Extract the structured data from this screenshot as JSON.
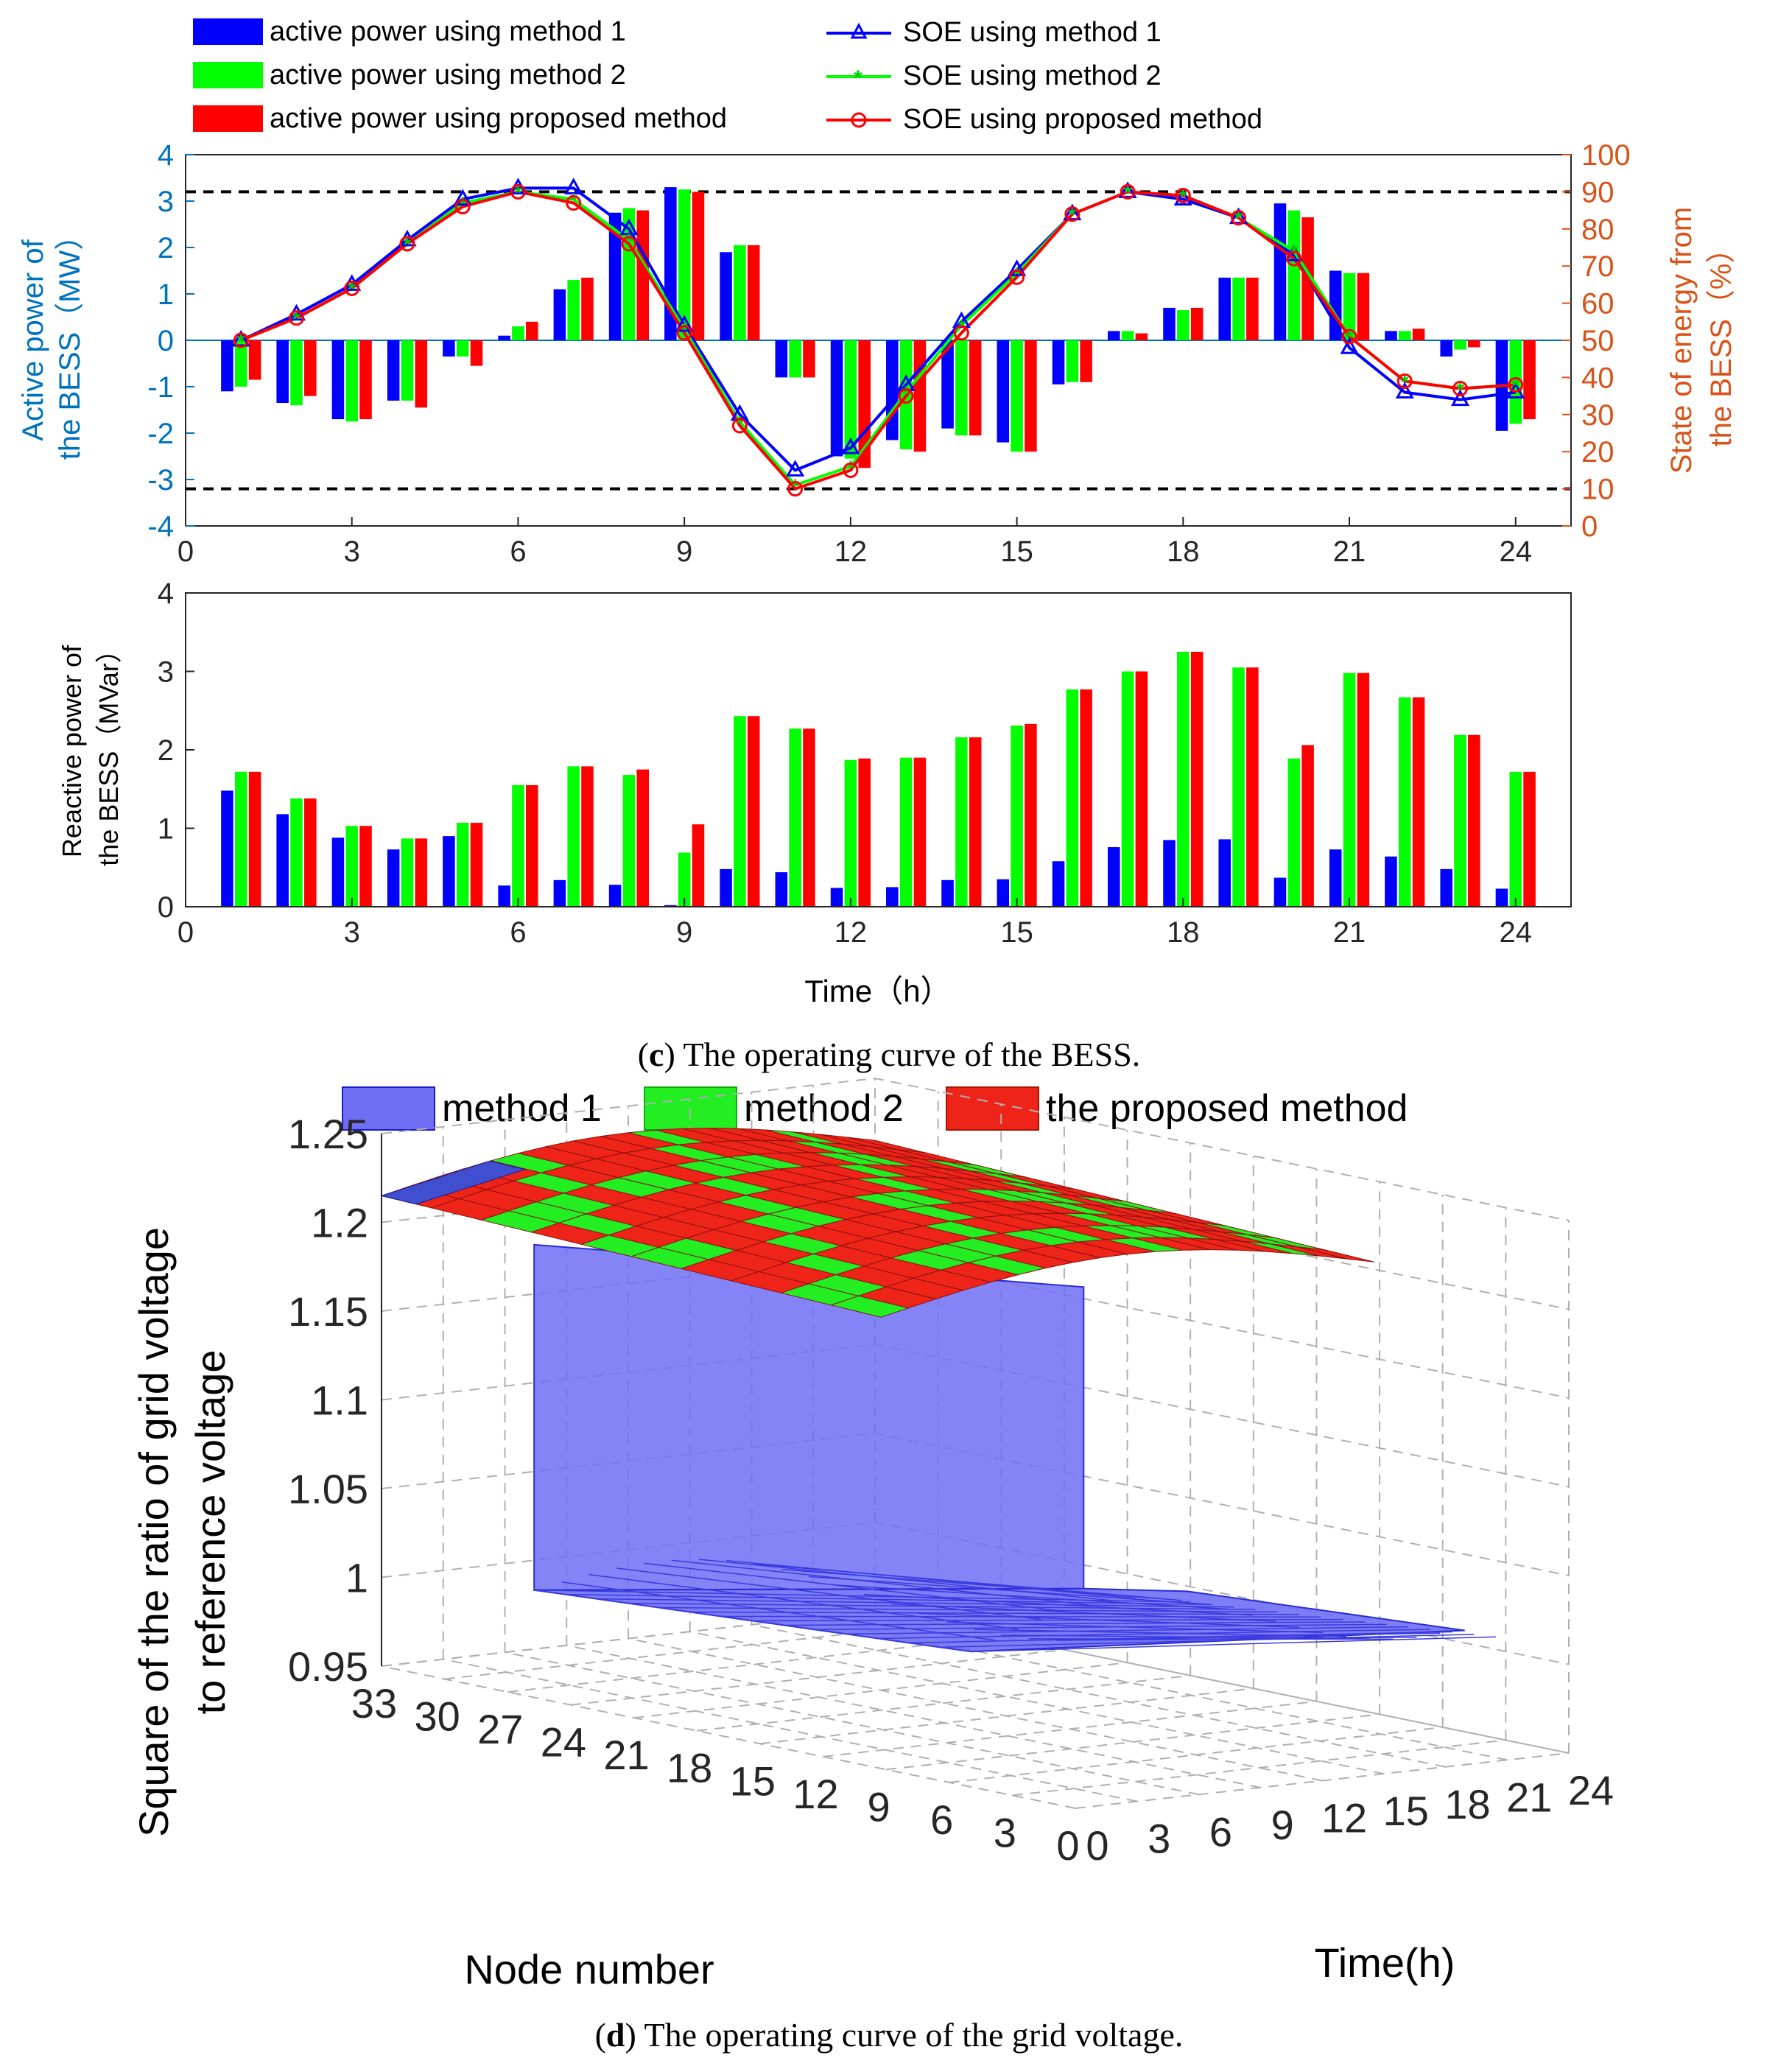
{
  "colors": {
    "method1": "#0000ff",
    "method2": "#00ff00",
    "proposed": "#ff0000",
    "left_axis": "#0072bd",
    "right_axis": "#d95319",
    "surf1": "#6f6ff4",
    "surf2": "#22ee22",
    "surf3": "#ee2418"
  },
  "chart_data": [
    {
      "type": "bar",
      "id": "active-power",
      "legend": [
        "active power using method 1",
        "active power using method 2",
        "active power using proposed method",
        "SOE using method 1",
        "SOE using method 2",
        "SOE using proposed method"
      ],
      "ylabel_line1": "Active power of",
      "ylabel_line2": "the BESS（MW）",
      "y2label_line1": "State of energy from",
      "y2label_line2": "the BESS（%）",
      "xlim": [
        0,
        25
      ],
      "ylim": [
        -4,
        4
      ],
      "y2lim": [
        0,
        100
      ],
      "x_ticks": [
        0,
        3,
        6,
        9,
        12,
        15,
        18,
        21,
        24
      ],
      "y_ticks": [
        -4,
        -3,
        -2,
        -1,
        0,
        1,
        2,
        3,
        4
      ],
      "y2_ticks": [
        0,
        10,
        20,
        30,
        40,
        50,
        60,
        70,
        80,
        90,
        100
      ],
      "limits": [
        3.2,
        -3.2
      ],
      "x": [
        1,
        2,
        3,
        4,
        5,
        6,
        7,
        8,
        9,
        10,
        11,
        12,
        13,
        14,
        15,
        16,
        17,
        18,
        19,
        20,
        21,
        22,
        23,
        24
      ],
      "series": [
        {
          "name": "active power using method 1",
          "values": [
            -1.1,
            -1.35,
            -1.7,
            -1.3,
            -0.35,
            0.1,
            1.1,
            2.75,
            3.3,
            1.9,
            -0.8,
            -2.5,
            -2.15,
            -1.9,
            -2.2,
            -0.95,
            0.2,
            0.7,
            1.35,
            2.95,
            1.5,
            0.2,
            -0.35,
            -1.95
          ]
        },
        {
          "name": "active power using method 2",
          "values": [
            -1.0,
            -1.4,
            -1.75,
            -1.3,
            -0.35,
            0.3,
            1.3,
            2.85,
            3.25,
            2.05,
            -0.8,
            -2.55,
            -2.35,
            -2.05,
            -2.4,
            -0.9,
            0.2,
            0.65,
            1.35,
            2.8,
            1.45,
            0.2,
            -0.2,
            -1.8
          ]
        },
        {
          "name": "active power using proposed method",
          "values": [
            -0.85,
            -1.2,
            -1.7,
            -1.45,
            -0.55,
            0.4,
            1.35,
            2.8,
            3.2,
            2.05,
            -0.8,
            -2.75,
            -2.4,
            -2.05,
            -2.4,
            -0.9,
            0.15,
            0.7,
            1.35,
            2.65,
            1.45,
            0.25,
            -0.15,
            -1.7
          ]
        },
        {
          "name": "SOE using method 1",
          "values": [
            50,
            57,
            65,
            77,
            88,
            91,
            91,
            80,
            54,
            30,
            15,
            21,
            38,
            55,
            69,
            84,
            90,
            88,
            83,
            73,
            48,
            36,
            34,
            36
          ]
        },
        {
          "name": "SOE using method 2",
          "values": [
            50,
            56,
            64,
            76,
            87,
            90,
            88,
            77,
            53,
            28,
            11,
            16,
            36,
            54,
            68,
            84,
            90,
            89,
            83,
            74,
            51,
            39,
            37,
            38
          ]
        },
        {
          "name": "SOE using proposed method",
          "values": [
            50,
            56,
            64,
            76,
            86,
            90,
            87,
            76,
            52,
            27,
            10,
            15,
            35,
            52,
            67,
            84,
            90,
            89,
            83,
            72,
            51,
            39,
            37,
            38
          ]
        }
      ]
    },
    {
      "type": "bar",
      "id": "reactive-power",
      "ylabel_line1": "Reactive power of",
      "ylabel_line2": "the BESS（MVar）",
      "xlabel": "Time（h）",
      "xlim": [
        0,
        25
      ],
      "ylim": [
        0,
        4
      ],
      "x_ticks": [
        0,
        3,
        6,
        9,
        12,
        15,
        18,
        21,
        24
      ],
      "y_ticks": [
        0,
        1,
        2,
        3,
        4
      ],
      "x": [
        1,
        2,
        3,
        4,
        5,
        6,
        7,
        8,
        9,
        10,
        11,
        12,
        13,
        14,
        15,
        16,
        17,
        18,
        19,
        20,
        21,
        22,
        23,
        24
      ],
      "series": [
        {
          "name": "method 1",
          "values": [
            1.48,
            1.18,
            0.88,
            0.73,
            0.9,
            0.27,
            0.34,
            0.28,
            0.02,
            0.48,
            0.44,
            0.24,
            0.25,
            0.34,
            0.35,
            0.58,
            0.76,
            0.85,
            0.86,
            0.37,
            0.73,
            0.64,
            0.48,
            0.23
          ]
        },
        {
          "name": "method 2",
          "values": [
            1.72,
            1.38,
            1.03,
            0.87,
            1.07,
            1.55,
            1.79,
            1.68,
            0.69,
            2.43,
            2.27,
            1.87,
            1.9,
            2.16,
            2.31,
            2.77,
            3.0,
            3.25,
            3.05,
            1.89,
            2.98,
            2.67,
            2.19,
            1.72
          ]
        },
        {
          "name": "proposed method",
          "values": [
            1.72,
            1.38,
            1.03,
            0.87,
            1.07,
            1.55,
            1.79,
            1.75,
            1.05,
            2.43,
            2.27,
            1.89,
            1.9,
            2.16,
            2.33,
            2.77,
            3.0,
            3.25,
            3.05,
            2.06,
            2.98,
            2.67,
            2.19,
            1.72
          ]
        }
      ]
    },
    {
      "type": "surface",
      "id": "grid-voltage",
      "legend": [
        "method 1",
        "method 2",
        "the proposed method"
      ],
      "zlabel_line1": "Square of the ratio of grid voltage",
      "zlabel_line2": "to reference voltage",
      "node_axis_label": "Node number",
      "time_axis_label": "Time(h)",
      "zlim": [
        0.95,
        1.25
      ],
      "z_ticks": [
        "1.25",
        "1.2",
        "1.15",
        "1.1",
        "1.05",
        "1",
        "0.95"
      ],
      "node_ticks": [
        "33",
        "30",
        "27",
        "24",
        "21",
        "18",
        "15",
        "12",
        "9",
        "6",
        "3",
        "0"
      ],
      "time_ticks": [
        "0",
        "3",
        "6",
        "9",
        "12",
        "15",
        "18",
        "21",
        "24"
      ],
      "series_levels": [
        {
          "name": "method 1",
          "z_range": [
            1.0,
            1.2
          ]
        },
        {
          "name": "method 2",
          "z_range": [
            1.18,
            1.24
          ]
        },
        {
          "name": "the proposed method",
          "z_range": [
            1.18,
            1.24
          ]
        }
      ]
    }
  ],
  "captions": {
    "c_label": "c",
    "c_text": ") The operating curve of the BESS.",
    "d_label": "d",
    "d_text": ") The operating curve of the grid voltage."
  }
}
